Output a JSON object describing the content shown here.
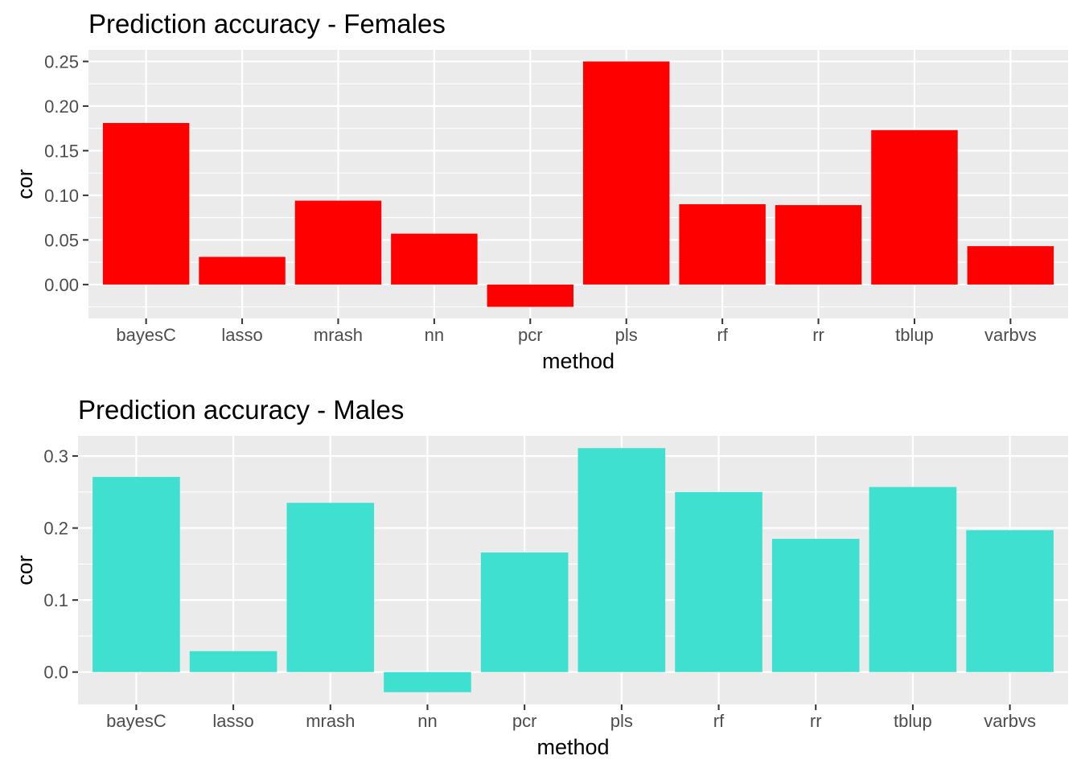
{
  "chart_data": [
    {
      "type": "bar",
      "title": "Prediction accuracy - Females",
      "xlabel": "method",
      "ylabel": "cor",
      "categories": [
        "bayesC",
        "lasso",
        "mrash",
        "nn",
        "pcr",
        "pls",
        "rf",
        "rr",
        "tblup",
        "varbvs"
      ],
      "values": [
        0.181,
        0.031,
        0.094,
        0.057,
        -0.025,
        0.25,
        0.09,
        0.089,
        0.173,
        0.043
      ],
      "ylim": [
        -0.038,
        0.263
      ],
      "yticks": [
        0.0,
        0.05,
        0.1,
        0.15,
        0.2,
        0.25
      ],
      "ytick_labels": [
        "0.00",
        "0.05",
        "0.10",
        "0.15",
        "0.20",
        "0.25"
      ],
      "bar_color": "#ff0000",
      "panel_background": "#ebebeb",
      "grid": true,
      "legend": "none"
    },
    {
      "type": "bar",
      "title": "Prediction accuracy - Males",
      "xlabel": "method",
      "ylabel": "cor",
      "categories": [
        "bayesC",
        "lasso",
        "mrash",
        "nn",
        "pcr",
        "pls",
        "rf",
        "rr",
        "tblup",
        "varbvs"
      ],
      "values": [
        0.271,
        0.029,
        0.235,
        -0.028,
        0.166,
        0.311,
        0.25,
        0.185,
        0.257,
        0.197
      ],
      "ylim": [
        -0.045,
        0.328
      ],
      "yticks": [
        0.0,
        0.1,
        0.2,
        0.3
      ],
      "ytick_labels": [
        "0.0",
        "0.1",
        "0.2",
        "0.3"
      ],
      "bar_color": "#40e0d0",
      "panel_background": "#ebebeb",
      "grid": true,
      "legend": "none"
    }
  ]
}
